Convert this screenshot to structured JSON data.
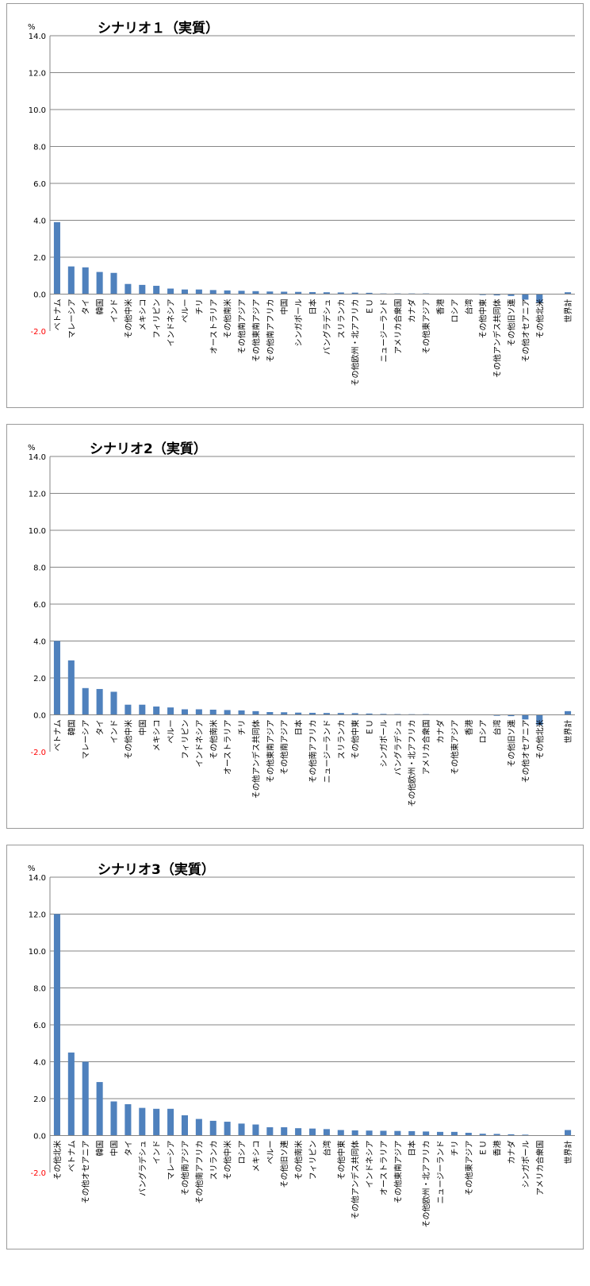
{
  "unit_label": "%",
  "colors": {
    "bar": "#4f81bd",
    "grid": "#868686",
    "axis": "#868686",
    "neg_label": "#ff0000",
    "text": "#000000"
  },
  "chart_data": [
    {
      "type": "bar",
      "title": "シナリオ１（実質）",
      "ylabel": "%",
      "ylim": [
        -2.0,
        14.0
      ],
      "yticks": [
        14.0,
        12.0,
        10.0,
        8.0,
        6.0,
        4.0,
        2.0,
        0.0,
        -2.0
      ],
      "ytick_labels": [
        "14.0",
        "12.0",
        "10.0",
        "8.0",
        "6.0",
        "4.0",
        "2.0",
        "0.0",
        "-2.0"
      ],
      "grid": true,
      "categories": [
        "ベトナム",
        "マレーシア",
        "タイ",
        "韓国",
        "インド",
        "その他中米",
        "メキシコ",
        "フィリピン",
        "インドネシア",
        "ペルー",
        "チリ",
        "オーストラリア",
        "その他南米",
        "その他南アジア",
        "その他東南アジア",
        "その他南アフリカ",
        "中国",
        "シンガポール",
        "日本",
        "バングラデシュ",
        "スリランカ",
        "その他欧州・北アフリカ",
        "ＥＵ",
        "ニュージーランド",
        "アメリカ合衆国",
        "カナダ",
        "その他東アジア",
        "香港",
        "ロシア",
        "台湾",
        "その他中東",
        "その他アンデス共同体",
        "その他旧ソ連",
        "その他オセアニア",
        "その他北米",
        "",
        "世界計"
      ],
      "values": [
        3.9,
        1.5,
        1.45,
        1.2,
        1.15,
        0.55,
        0.5,
        0.45,
        0.3,
        0.25,
        0.25,
        0.22,
        0.2,
        0.18,
        0.16,
        0.14,
        0.13,
        0.12,
        0.11,
        0.1,
        0.09,
        0.08,
        0.07,
        0.03,
        0.02,
        0.01,
        0.01,
        0.0,
        0.0,
        0.0,
        -0.05,
        -0.07,
        -0.1,
        -0.3,
        -0.45,
        0,
        0.1
      ]
    },
    {
      "type": "bar",
      "title": "シナリオ2（実質）",
      "ylabel": "%",
      "ylim": [
        -2.0,
        14.0
      ],
      "yticks": [
        14.0,
        12.0,
        10.0,
        8.0,
        6.0,
        4.0,
        2.0,
        0.0,
        -2.0
      ],
      "ytick_labels": [
        "14.0",
        "12.0",
        "10.0",
        "8.0",
        "6.0",
        "4.0",
        "2.0",
        "0.0",
        "-2.0"
      ],
      "grid": true,
      "categories": [
        "ベトナム",
        "韓国",
        "マレーシア",
        "タイ",
        "インド",
        "その他中米",
        "中国",
        "メキシコ",
        "ペルー",
        "フィリピン",
        "インドネシア",
        "その他南米",
        "オーストラリア",
        "チリ",
        "その他アンデス共同体",
        "その他東南アジア",
        "その他南アジア",
        "日本",
        "その他南アフリカ",
        "ニュージーランド",
        "スリランカ",
        "その他中東",
        "ＥＵ",
        "シンガポール",
        "バングラデシュ",
        "その他欧州・北アフリカ",
        "アメリカ合衆国",
        "カナダ",
        "その他東アジア",
        "香港",
        "ロシア",
        "台湾",
        "その他旧ソ連",
        "その他オセアニア",
        "その他北米",
        "",
        "世界計"
      ],
      "values": [
        4.0,
        2.95,
        1.45,
        1.4,
        1.25,
        0.55,
        0.55,
        0.45,
        0.4,
        0.3,
        0.3,
        0.28,
        0.26,
        0.24,
        0.2,
        0.15,
        0.14,
        0.12,
        0.11,
        0.1,
        0.1,
        0.09,
        0.07,
        0.05,
        0.04,
        0.03,
        0.01,
        0.0,
        0.0,
        0.0,
        0.0,
        -0.05,
        -0.07,
        -0.25,
        -0.55,
        0,
        0.2
      ]
    },
    {
      "type": "bar",
      "title": "シナリオ3（実質）",
      "ylabel": "%",
      "ylim": [
        -2.0,
        14.0
      ],
      "yticks": [
        14.0,
        12.0,
        10.0,
        8.0,
        6.0,
        4.0,
        2.0,
        0.0,
        -2.0
      ],
      "ytick_labels": [
        "14.0",
        "12.0",
        "10.0",
        "8.0",
        "6.0",
        "4.0",
        "2.0",
        "0.0",
        "-2.0"
      ],
      "grid": true,
      "categories": [
        "その他北米",
        "ベトナム",
        "その他オセアニア",
        "韓国",
        "中国",
        "タイ",
        "バングラデシュ",
        "インド",
        "マレーシア",
        "その他南アジア",
        "その他南アフリカ",
        "スリランカ",
        "その他中米",
        "ロシア",
        "メキシコ",
        "ペルー",
        "その他旧ソ連",
        "その他南米",
        "フィリピン",
        "台湾",
        "その他中東",
        "その他アンデス共同体",
        "インドネシア",
        "オーストラリア",
        "その他東南アジア",
        "日本",
        "その他欧州・北アフリカ",
        "ニュージーランド",
        "チリ",
        "その他東アジア",
        "ＥＵ",
        "香港",
        "カナダ",
        "シンガポール",
        "アメリカ合衆国",
        "",
        "世界計"
      ],
      "values": [
        12.0,
        4.5,
        4.0,
        2.9,
        1.85,
        1.7,
        1.5,
        1.45,
        1.45,
        1.1,
        0.9,
        0.8,
        0.75,
        0.65,
        0.6,
        0.45,
        0.45,
        0.4,
        0.38,
        0.35,
        0.3,
        0.28,
        0.27,
        0.26,
        0.25,
        0.24,
        0.22,
        0.2,
        0.2,
        0.15,
        0.1,
        0.09,
        0.07,
        0.05,
        0.0,
        0,
        0.3
      ]
    }
  ]
}
